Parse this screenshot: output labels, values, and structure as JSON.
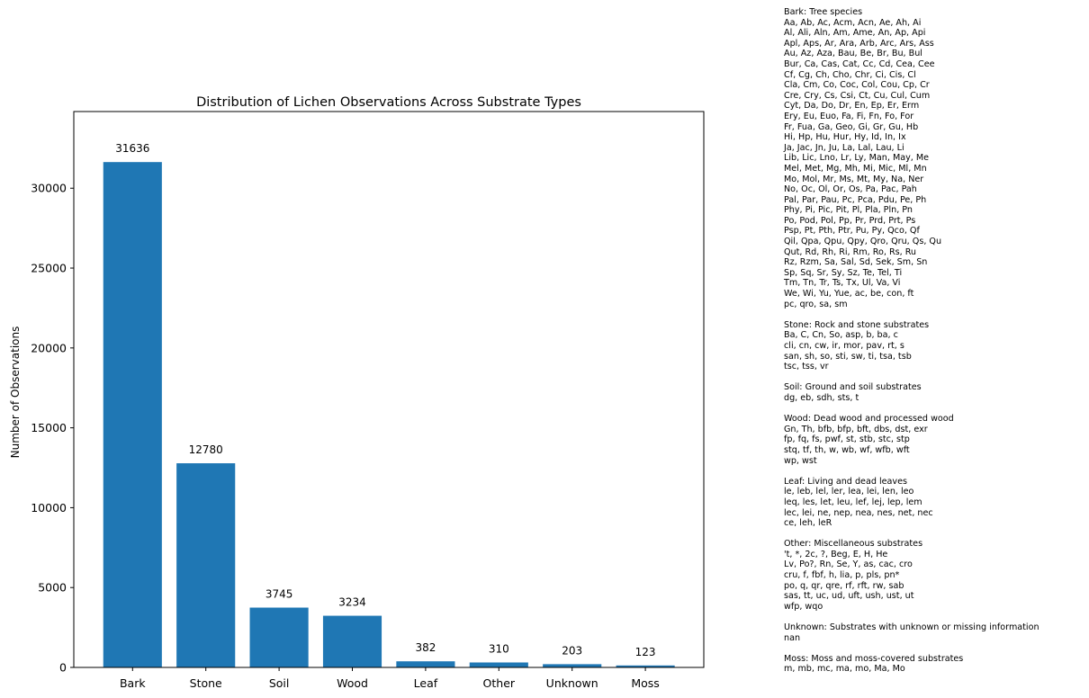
{
  "chart_data": {
    "type": "bar",
    "title": "Distribution of Lichen Observations Across Substrate Types",
    "xlabel": "",
    "ylabel": "Number of Observations",
    "categories": [
      "Bark",
      "Stone",
      "Soil",
      "Wood",
      "Leaf",
      "Other",
      "Unknown",
      "Moss"
    ],
    "values": [
      31636,
      12780,
      3745,
      3234,
      382,
      310,
      203,
      123
    ],
    "data_labels": [
      "31636",
      "12780",
      "3745",
      "3234",
      "382",
      "310",
      "203",
      "123"
    ],
    "ylim": [
      0,
      34800
    ],
    "yticks": [
      0,
      5000,
      10000,
      15000,
      20000,
      25000,
      30000
    ],
    "ytick_labels": [
      "0",
      "5000",
      "10000",
      "15000",
      "20000",
      "25000",
      "30000"
    ],
    "bar_color": "#1f77b4",
    "grid": false,
    "legend_placement": "right"
  },
  "legend": [
    {
      "lines": [
        "Bark: Tree species",
        "Aa, Ab, Ac, Acm, Acn, Ae, Ah, Ai",
        "Al, Ali, Aln, Am, Ame, An, Ap, Api",
        "Apl, Aps, Ar, Ara, Arb, Arc, Ars, Ass",
        "Au, Az, Aza, Bau, Be, Br, Bu, Bul",
        "Bur, Ca, Cas, Cat, Cc, Cd, Cea, Cee",
        "Cf, Cg, Ch, Cho, Chr, Ci, Cis, Cl",
        "Cla, Cm, Co, Coc, Col, Cou, Cp, Cr",
        "Cre, Cry, Cs, Csi, Ct, Cu, Cul, Cum",
        "Cyt, Da, Do, Dr, En, Ep, Er, Erm",
        "Ery, Eu, Euo, Fa, Fi, Fn, Fo, For",
        "Fr, Fua, Ga, Geo, Gi, Gr, Gu, Hb",
        "Hi, Hp, Hu, Hur, Hy, Id, In, Ix",
        "Ja, Jac, Jn, Ju, La, Lal, Lau, Li",
        "Lib, Lic, Lno, Lr, Ly, Man, May, Me",
        "Mel, Met, Mg, Mh, Mi, Mic, Ml, Mn",
        "Mo, Mol, Mr, Ms, Mt, My, Na, Ner",
        "No, Oc, Ol, Or, Os, Pa, Pac, Pah",
        "Pal, Par, Pau, Pc, Pca, Pdu, Pe, Ph",
        "Phy, Pi, Pic, Pit, Pl, Pla, Pln, Pn",
        "Po, Pod, Pol, Pp, Pr, Prd, Prt, Ps",
        "Psp, Pt, Pth, Ptr, Pu, Py, Qco, Qf",
        "Qil, Qpa, Qpu, Qpy, Qro, Qru, Qs, Qu",
        "Qut, Rd, Rh, Ri, Rm, Ro, Rs, Ru",
        "Rz, Rzm, Sa, Sal, Sd, Sek, Sm, Sn",
        "Sp, Sq, Sr, Sy, Sz, Te, Tel, Ti",
        "Tm, Tn, Tr, Ts, Tx, Ul, Va, Vi",
        "We, Wi, Yu, Yue, ac, be, con, ft",
        "pc, qro, sa, sm"
      ]
    },
    {
      "lines": [
        "Stone: Rock and stone substrates",
        "Ba, C, Cn, So, asp, b, ba, c",
        "cli, cn, cw, ir, mor, pav, rt, s",
        "san, sh, so, sti, sw, ti, tsa, tsb",
        "tsc, tss, vr"
      ]
    },
    {
      "lines": [
        "Soil: Ground and soil substrates",
        "dg, eb, sdh, sts, t"
      ]
    },
    {
      "lines": [
        "Wood: Dead wood and processed wood",
        "Gn, Th, bfb, bfp, bft, dbs, dst, exr",
        "fp, fq, fs, pwf, st, stb, stc, stp",
        "stq, tf, th, w, wb, wf, wfb, wft",
        "wp, wst"
      ]
    },
    {
      "lines": [
        "Leaf: Living and dead leaves",
        "le, leb, lel, ler, lea, lei, len, leo",
        "leq, les, let, leu, lef, lej, lep, lem",
        "lec, lei, ne, nep, nea, nes, net, nec",
        "ce, leh, leR"
      ]
    },
    {
      "lines": [
        "Other: Miscellaneous substrates",
        "'t, *, 2c, ?, Beg, E, H, He",
        "Lv, Po?, Rn, Se, Y, as, cac, cro",
        "cru, f, fbf, h, lia, p, pls, pn*",
        "po, q, qr, qre, rf, rft, rw, sab",
        "sas, tt, uc, ud, uft, ush, ust, ut",
        "wfp, wqo"
      ]
    },
    {
      "lines": [
        "Unknown: Substrates with unknown or missing information",
        "nan"
      ]
    },
    {
      "lines": [
        "Moss: Moss and moss-covered substrates",
        "m, mb, mc, ma, mo, Ma, Mo"
      ]
    }
  ]
}
